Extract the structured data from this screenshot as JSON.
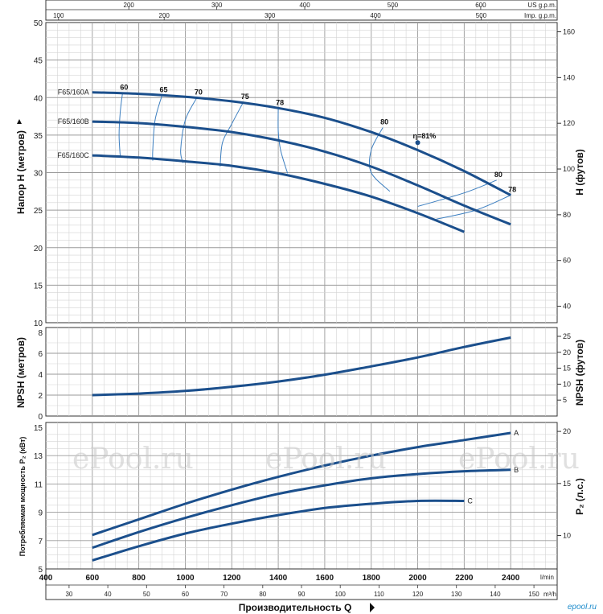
{
  "chart_data": [
    {
      "type": "line",
      "panel": "head",
      "ylabel": "Напор H (метров)",
      "y2label": "H (футов)",
      "ylim": [
        10,
        50
      ],
      "y_ticks": [
        "10",
        "15",
        "20",
        "25",
        "30",
        "35",
        "40",
        "45",
        "50"
      ],
      "y2_ticks": [
        "40",
        "60",
        "80",
        "100",
        "120",
        "140",
        "160"
      ],
      "series": [
        {
          "name": "F65/160A",
          "x": [
            600,
            800,
            1000,
            1200,
            1400,
            1600,
            1800,
            2000,
            2200,
            2400
          ],
          "y": [
            40.7,
            40.5,
            40.1,
            39.5,
            38.6,
            37.3,
            35.4,
            33.0,
            30.2,
            27.0
          ]
        },
        {
          "name": "F65/160B",
          "x": [
            600,
            800,
            1000,
            1200,
            1400,
            1600,
            1800,
            2000,
            2200,
            2400
          ],
          "y": [
            36.8,
            36.6,
            36.1,
            35.4,
            34.3,
            32.8,
            30.8,
            28.3,
            25.6,
            23.1
          ]
        },
        {
          "name": "F65/160C",
          "x": [
            600,
            800,
            1000,
            1200,
            1400,
            1600,
            1800,
            2000,
            2200
          ],
          "y": [
            32.3,
            32.0,
            31.5,
            30.9,
            29.9,
            28.5,
            26.8,
            24.6,
            22.1
          ]
        }
      ],
      "efficiency_lines": [
        {
          "label": "60",
          "points": [
            [
              730,
              40.6
            ],
            [
              720,
              38
            ],
            [
              715,
              35
            ],
            [
              720,
              32.2
            ]
          ]
        },
        {
          "label": "65",
          "points": [
            [
              900,
              40.3
            ],
            [
              870,
              37
            ],
            [
              860,
              33
            ],
            [
              860,
              31.6
            ]
          ]
        },
        {
          "label": "70",
          "points": [
            [
              1050,
              40.0
            ],
            [
              1000,
              37
            ],
            [
              980,
              33
            ],
            [
              990,
              31.3
            ]
          ]
        },
        {
          "label": "75",
          "points": [
            [
              1250,
              39.4
            ],
            [
              1200,
              36.5
            ],
            [
              1160,
              34
            ],
            [
              1150,
              30.8
            ]
          ]
        },
        {
          "label": "78",
          "points": [
            [
              1400,
              38.6
            ],
            [
              1400,
              35.5
            ],
            [
              1410,
              33
            ],
            [
              1440,
              29.9
            ]
          ]
        },
        {
          "label": "80",
          "points": [
            [
              1850,
              36.0
            ],
            [
              1800,
              33
            ],
            [
              1800,
              30
            ],
            [
              1880,
              27.5
            ]
          ]
        },
        {
          "label": "80",
          "points": [
            [
              2340,
              29.0
            ],
            [
              2200,
              27.3
            ],
            [
              2000,
              25.5
            ]
          ]
        },
        {
          "label": "78",
          "points": [
            [
              2400,
              27.0
            ],
            [
              2250,
              25.0
            ],
            [
              2080,
              23.8
            ]
          ]
        }
      ],
      "annotations": [
        {
          "text": "η=81%",
          "x": 2000,
          "y": 34.0
        }
      ],
      "grid": true
    },
    {
      "type": "line",
      "panel": "npsh",
      "ylabel": "NPSH (метров)",
      "y2label": "NPSH (футов)",
      "ylim": [
        0,
        8
      ],
      "y_ticks": [
        "0",
        "2",
        "4",
        "6",
        "8"
      ],
      "y2_ticks": [
        "5",
        "10",
        "15",
        "20",
        "25"
      ],
      "series": [
        {
          "name": "",
          "x": [
            600,
            800,
            1000,
            1200,
            1400,
            1600,
            1800,
            2000,
            2200,
            2400
          ],
          "y": [
            2.0,
            2.15,
            2.4,
            2.8,
            3.3,
            3.95,
            4.75,
            5.6,
            6.6,
            7.5
          ]
        }
      ],
      "grid": true
    },
    {
      "type": "line",
      "panel": "power",
      "ylabel": "Потребляемая мощность P₂ (кВт)",
      "y2label": "P₂ (л.с.)",
      "ylim": [
        5,
        15
      ],
      "y_ticks": [
        "5",
        "7",
        "9",
        "11",
        "13",
        "15"
      ],
      "y2_ticks": [
        "10",
        "15",
        "20"
      ],
      "series": [
        {
          "name": "A",
          "x": [
            600,
            800,
            1000,
            1200,
            1400,
            1600,
            1800,
            2000,
            2200,
            2400
          ],
          "y": [
            7.4,
            8.5,
            9.6,
            10.6,
            11.5,
            12.3,
            13.0,
            13.6,
            14.1,
            14.6
          ]
        },
        {
          "name": "B",
          "x": [
            600,
            800,
            1000,
            1200,
            1400,
            1600,
            1800,
            2000,
            2200,
            2400
          ],
          "y": [
            6.5,
            7.6,
            8.6,
            9.5,
            10.3,
            10.9,
            11.4,
            11.7,
            11.9,
            12.0
          ]
        },
        {
          "name": "C",
          "x": [
            600,
            800,
            1000,
            1200,
            1400,
            1600,
            1800,
            2000,
            2200
          ],
          "y": [
            5.6,
            6.6,
            7.5,
            8.2,
            8.8,
            9.3,
            9.6,
            9.8,
            9.8
          ]
        }
      ],
      "grid": true
    }
  ],
  "axes": {
    "x_lmin_ticks": [
      "400",
      "600",
      "800",
      "1000",
      "1200",
      "1400",
      "1600",
      "1800",
      "2000",
      "2200",
      "2400"
    ],
    "x_lmin_unit": "l/min",
    "x_m3h_ticks": [
      "30",
      "40",
      "50",
      "60",
      "70",
      "80",
      "90",
      "100",
      "110",
      "120",
      "130",
      "140",
      "150"
    ],
    "x_m3h_unit": "m³/h",
    "x_label": "Производительность Q",
    "x_usgpm_ticks": [
      "200",
      "300",
      "400",
      "500",
      "600"
    ],
    "x_usgpm_unit": "US g.p.m.",
    "x_impgpm_ticks": [
      "100",
      "200",
      "300",
      "400",
      "500"
    ],
    "x_impgpm_unit": "Imp. g.p.m."
  },
  "watermark": "ePool.ru",
  "brand": "epool.ru"
}
